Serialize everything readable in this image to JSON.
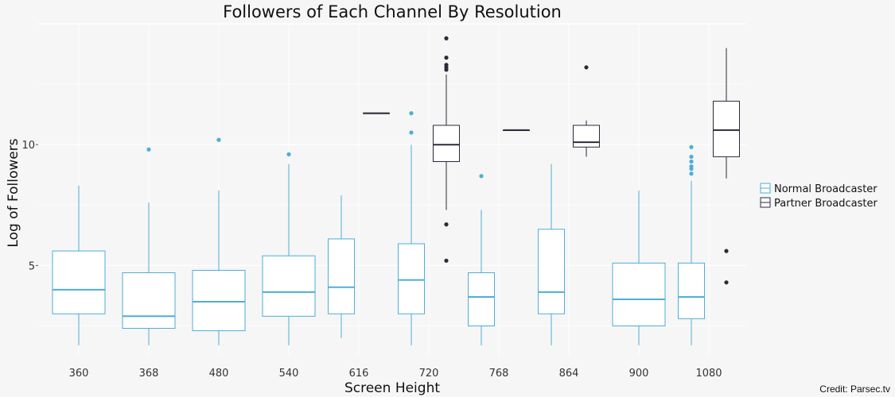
{
  "chart_data": {
    "type": "box",
    "title": "Followers of Each Channel By Resolution",
    "xlabel": "Screen Height",
    "ylabel": "Log of Followers",
    "credit": "Credit: Parsec.tv",
    "categories": [
      "360",
      "368",
      "480",
      "540",
      "616",
      "720",
      "768",
      "864",
      "900",
      "1080"
    ],
    "yticks": [
      5,
      10
    ],
    "ylim": [
      1.3,
      15
    ],
    "legend_position": "right",
    "grid": true,
    "series": [
      {
        "name": "Normal Broadcaster",
        "color": "#4eaed6",
        "boxes": [
          {
            "category": "360",
            "whisker_low": 1.7,
            "q1": 3.0,
            "median": 4.0,
            "q3": 5.6,
            "whisker_high": 8.3,
            "outliers": []
          },
          {
            "category": "368",
            "whisker_low": 1.7,
            "q1": 2.4,
            "median": 2.9,
            "q3": 4.7,
            "whisker_high": 7.6,
            "outliers": [
              9.8
            ]
          },
          {
            "category": "480",
            "whisker_low": 1.7,
            "q1": 2.3,
            "median": 3.5,
            "q3": 4.8,
            "whisker_high": 8.1,
            "outliers": [
              10.2
            ]
          },
          {
            "category": "540",
            "whisker_low": 1.7,
            "q1": 2.9,
            "median": 3.9,
            "q3": 5.4,
            "whisker_high": 9.2,
            "outliers": [
              9.6
            ]
          },
          {
            "category": "616",
            "whisker_low": 2.0,
            "q1": 3.0,
            "median": 4.1,
            "q3": 6.1,
            "whisker_high": 7.9,
            "outliers": []
          },
          {
            "category": "720",
            "whisker_low": 1.7,
            "q1": 3.0,
            "median": 4.4,
            "q3": 5.9,
            "whisker_high": 10.0,
            "outliers": [
              10.5,
              11.3
            ]
          },
          {
            "category": "768",
            "whisker_low": 1.7,
            "q1": 2.5,
            "median": 3.7,
            "q3": 4.7,
            "whisker_high": 7.3,
            "outliers": [
              8.7
            ]
          },
          {
            "category": "864",
            "whisker_low": 1.7,
            "q1": 3.0,
            "median": 3.9,
            "q3": 6.5,
            "whisker_high": 9.2,
            "outliers": []
          },
          {
            "category": "900",
            "whisker_low": 1.7,
            "q1": 2.5,
            "median": 3.6,
            "q3": 5.1,
            "whisker_high": 8.1,
            "outliers": []
          },
          {
            "category": "1080",
            "whisker_low": 1.7,
            "q1": 2.8,
            "median": 3.7,
            "q3": 5.1,
            "whisker_high": 8.5,
            "outliers": [
              8.8,
              9.0,
              9.1,
              9.3,
              9.5,
              9.9
            ]
          }
        ]
      },
      {
        "name": "Partner Broadcaster",
        "color": "#2b2b3a",
        "boxes": [
          {
            "category": "616",
            "whisker_low": 11.3,
            "q1": 11.3,
            "median": 11.3,
            "q3": 11.3,
            "whisker_high": 11.3,
            "outliers": []
          },
          {
            "category": "720",
            "whisker_low": 7.3,
            "q1": 9.3,
            "median": 10.0,
            "q3": 10.8,
            "whisker_high": 12.9,
            "outliers": [
              5.2,
              6.7,
              13.1,
              13.2,
              13.3,
              13.6,
              14.4
            ]
          },
          {
            "category": "768",
            "whisker_low": 10.6,
            "q1": 10.6,
            "median": 10.6,
            "q3": 10.6,
            "whisker_high": 10.6,
            "outliers": []
          },
          {
            "category": "864",
            "whisker_low": 9.5,
            "q1": 9.9,
            "median": 10.1,
            "q3": 10.8,
            "whisker_high": 11.0,
            "outliers": [
              13.2
            ]
          },
          {
            "category": "1080",
            "whisker_low": 8.6,
            "q1": 9.5,
            "median": 10.6,
            "q3": 11.8,
            "whisker_high": 14.0,
            "outliers": [
              4.3,
              5.6
            ]
          }
        ]
      }
    ]
  }
}
